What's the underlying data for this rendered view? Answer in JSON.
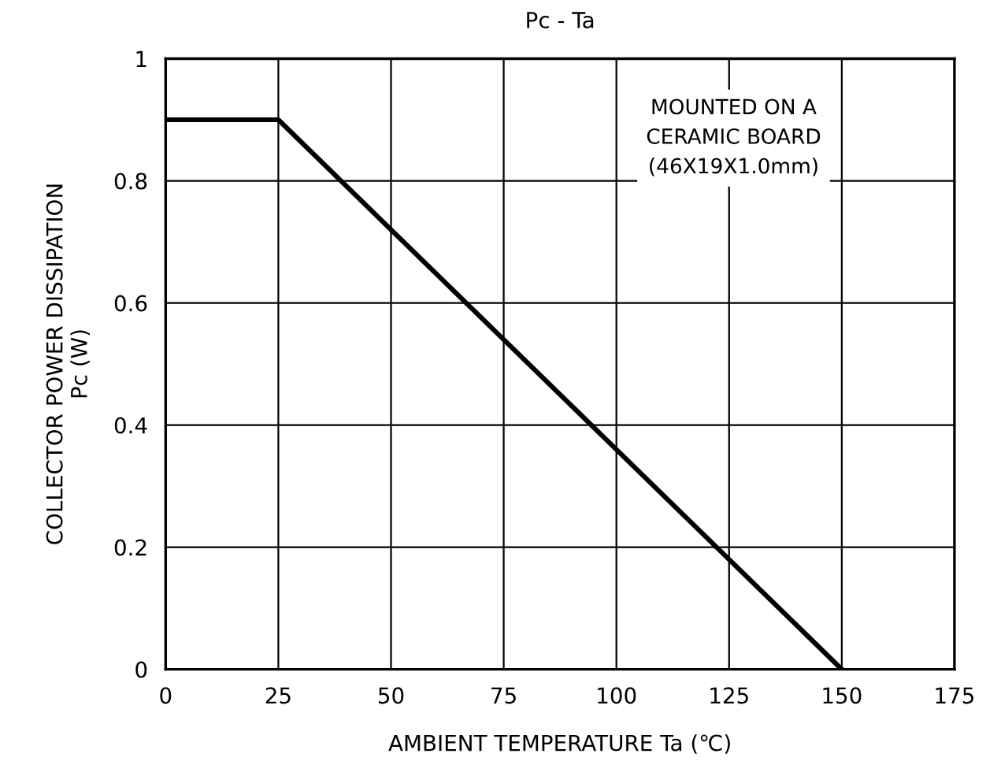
{
  "chart_data": {
    "type": "line",
    "title": "Pc - Ta",
    "xlabel": "AMBIENT TEMPERATURE Ta (℃)",
    "ylabel": "COLLECTOR POWER DISSIPATION\nPc (W)",
    "x": [
      0,
      25,
      150
    ],
    "series": [
      {
        "color": "#000000",
        "values": [
          0.9,
          0.9,
          0
        ]
      }
    ],
    "xlim": [
      0,
      175
    ],
    "xticks": [
      0,
      25,
      50,
      75,
      100,
      125,
      150,
      175
    ],
    "ylim": [
      0,
      1
    ],
    "yticks": [
      0,
      0.2,
      0.4,
      0.6,
      0.8,
      1
    ],
    "grid": true,
    "marker": "none",
    "line_style": "solid",
    "annotations": [
      "MOUNTED ON A\nCERAMIC BOARD\n(46X19X1.0mm)"
    ]
  }
}
